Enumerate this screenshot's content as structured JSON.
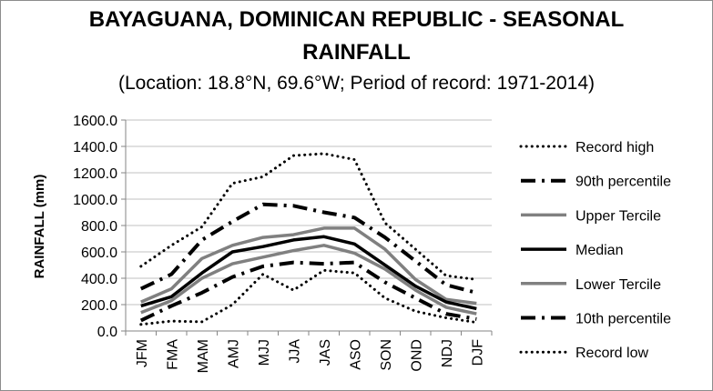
{
  "chart_data": {
    "type": "line",
    "title_line1": "BAYAGUANA, DOMINICAN REPUBLIC - SEASONAL",
    "title_line2": "RAINFALL",
    "subtitle": "(Location: 18.8°N, 69.6°W; Period of record: 1971-2014)",
    "ylabel": "RAINFALL (mm)",
    "xlabel": "",
    "ylim": [
      0,
      1600
    ],
    "yticks": [
      "1600.0",
      "1400.0",
      "1200.0",
      "1000.0",
      "800.0",
      "600.0",
      "400.0",
      "200.0",
      "0.0"
    ],
    "categories": [
      "JFM",
      "FMA",
      "MAM",
      "AMJ",
      "MJJ",
      "JJA",
      "JAS",
      "ASO",
      "SON",
      "OND",
      "NDJ",
      "DJF"
    ],
    "series": [
      {
        "name": "Record high",
        "style": "dotted",
        "color": "#000000",
        "values": [
          490,
          650,
          790,
          1120,
          1170,
          1330,
          1345,
          1300,
          820,
          620,
          420,
          390
        ]
      },
      {
        "name": "90th percentile",
        "style": "dashdot",
        "color": "#000000",
        "values": [
          320,
          430,
          690,
          830,
          960,
          950,
          900,
          860,
          710,
          530,
          350,
          290
        ]
      },
      {
        "name": "Upper Tercile",
        "style": "solid",
        "color": "#808080",
        "values": [
          220,
          320,
          550,
          650,
          710,
          730,
          780,
          780,
          620,
          390,
          240,
          210
        ]
      },
      {
        "name": "Median",
        "style": "solid",
        "color": "#000000",
        "values": [
          190,
          260,
          440,
          600,
          640,
          690,
          715,
          660,
          500,
          340,
          220,
          170
        ]
      },
      {
        "name": "Lower Tercile",
        "style": "solid",
        "color": "#808080",
        "values": [
          140,
          230,
          400,
          510,
          560,
          610,
          650,
          590,
          470,
          310,
          180,
          130
        ]
      },
      {
        "name": "10th percentile",
        "style": "dashdot",
        "color": "#000000",
        "values": [
          80,
          190,
          290,
          410,
          490,
          520,
          510,
          520,
          370,
          250,
          130,
          90
        ]
      },
      {
        "name": "Record low",
        "style": "dotted",
        "color": "#000000",
        "values": [
          50,
          75,
          70,
          200,
          430,
          310,
          460,
          440,
          250,
          150,
          100,
          65
        ]
      }
    ]
  }
}
